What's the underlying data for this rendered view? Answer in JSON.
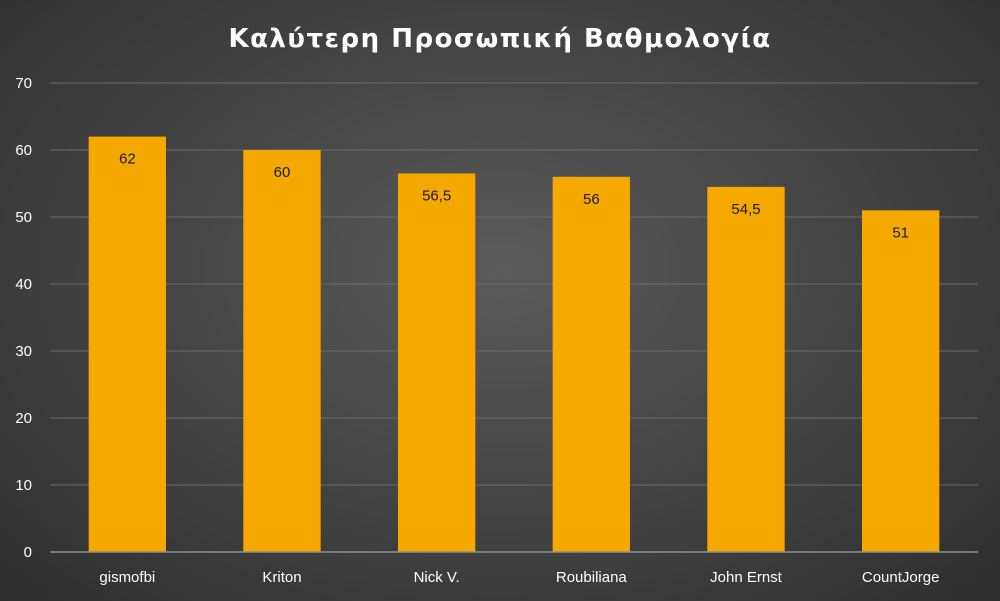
{
  "chart_data": {
    "type": "bar",
    "title": "Καλύτερη Προσωπική Βαθμολογία",
    "categories": [
      "gismofbi",
      "Kriton",
      "Nick V.",
      "Roubiliana",
      "John Ernst",
      "CountJorge"
    ],
    "values": [
      62,
      60,
      56.5,
      56,
      54.5,
      51
    ],
    "data_labels": [
      "62",
      "60",
      "56,5",
      "56",
      "54,5",
      "51"
    ],
    "yticks": [
      "0",
      "10",
      "20",
      "30",
      "40",
      "50",
      "60",
      "70"
    ],
    "ylim": [
      0,
      70
    ],
    "grid": true,
    "colors": {
      "bar": "#f5a800",
      "text": "#ffffff",
      "label": "#1a1a1a",
      "grid": "#6a6a6a",
      "axis": "#8f8f8f"
    }
  }
}
